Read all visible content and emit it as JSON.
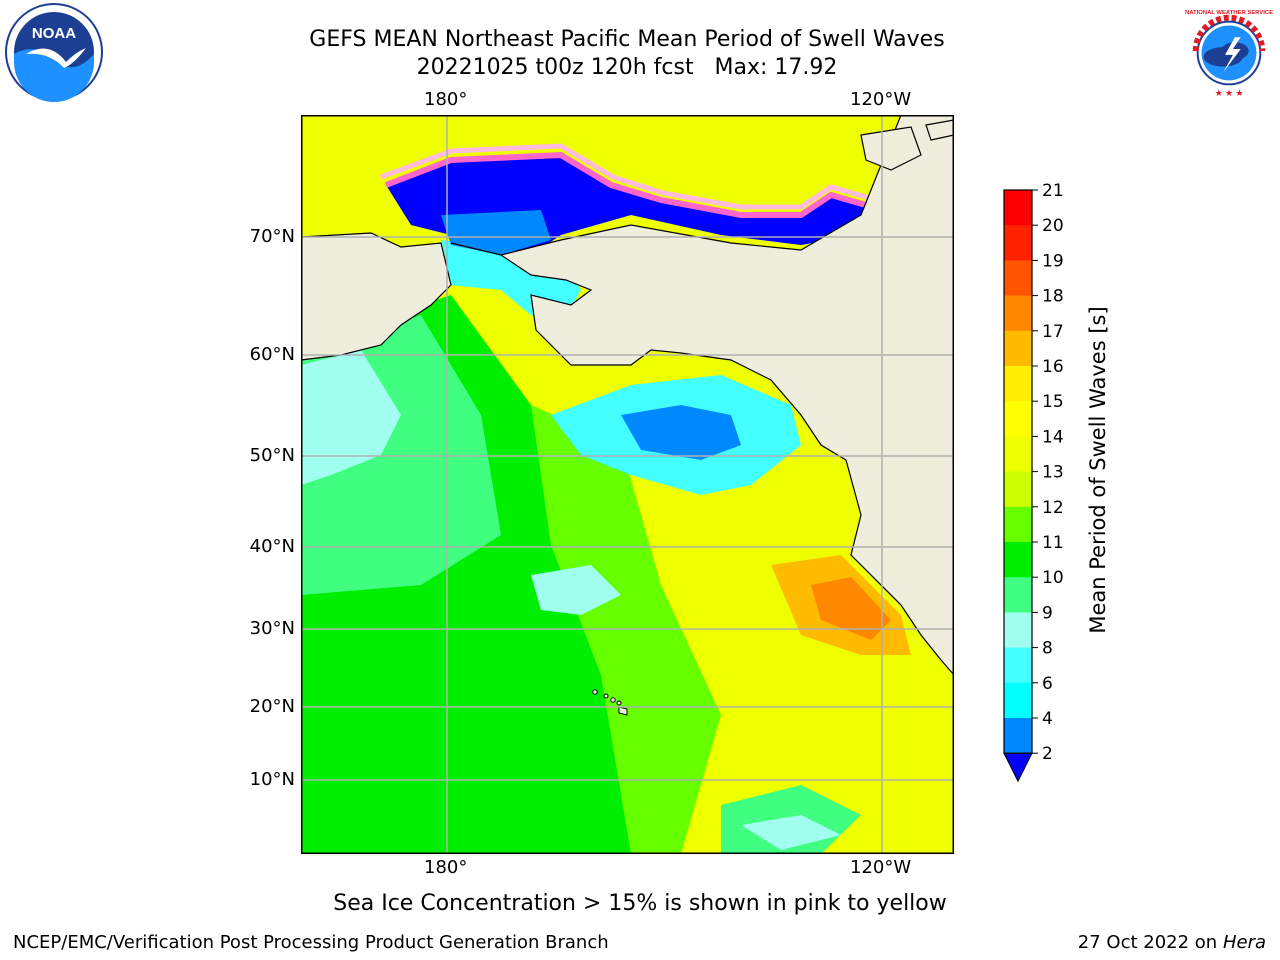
{
  "title": {
    "line1": "GEFS MEAN Northeast Pacific Mean Period of Swell Waves",
    "line2": "20221025 t00z 120h fcst   Max: 17.92"
  },
  "map": {
    "lon_labels_top": [
      "180°",
      "120°W"
    ],
    "lon_labels_bottom": [
      "180°",
      "120°W"
    ],
    "lat_labels": [
      "70°N",
      "60°N",
      "50°N",
      "40°N",
      "30°N",
      "20°N",
      "10°N"
    ]
  },
  "colorbar": {
    "label": "Mean Period of Swell Waves [s]",
    "ticks": [
      "21",
      "20",
      "19",
      "18",
      "17",
      "16",
      "15",
      "14",
      "13",
      "12",
      "11",
      "10",
      "9",
      "8",
      "6",
      "4",
      "2"
    ],
    "colors": {
      "c2": "#0000ff",
      "c4": "#0088ff",
      "c6": "#00ffff",
      "c8": "#44ffff",
      "c9": "#a0ffee",
      "c10": "#40ff80",
      "c11": "#00ee00",
      "c12": "#66ff00",
      "c13": "#ccff00",
      "c14": "#eeff00",
      "c15": "#ffff00",
      "c16": "#ffee00",
      "c17": "#ffbb00",
      "c18": "#ff8800",
      "c19": "#ff5500",
      "c20": "#ff2200",
      "c21": "#ff0000"
    }
  },
  "note": "Sea Ice Concentration > 15% is shown in pink to yellow",
  "footer": {
    "left": "NCEP/EMC/Verification Post Processing Product Generation Branch",
    "right_date": "27 Oct 2022 on ",
    "right_host": "Hera"
  },
  "logos": {
    "noaa_text": "NOAA",
    "nws_text": "NATIONAL WEATHER SERVICE"
  }
}
